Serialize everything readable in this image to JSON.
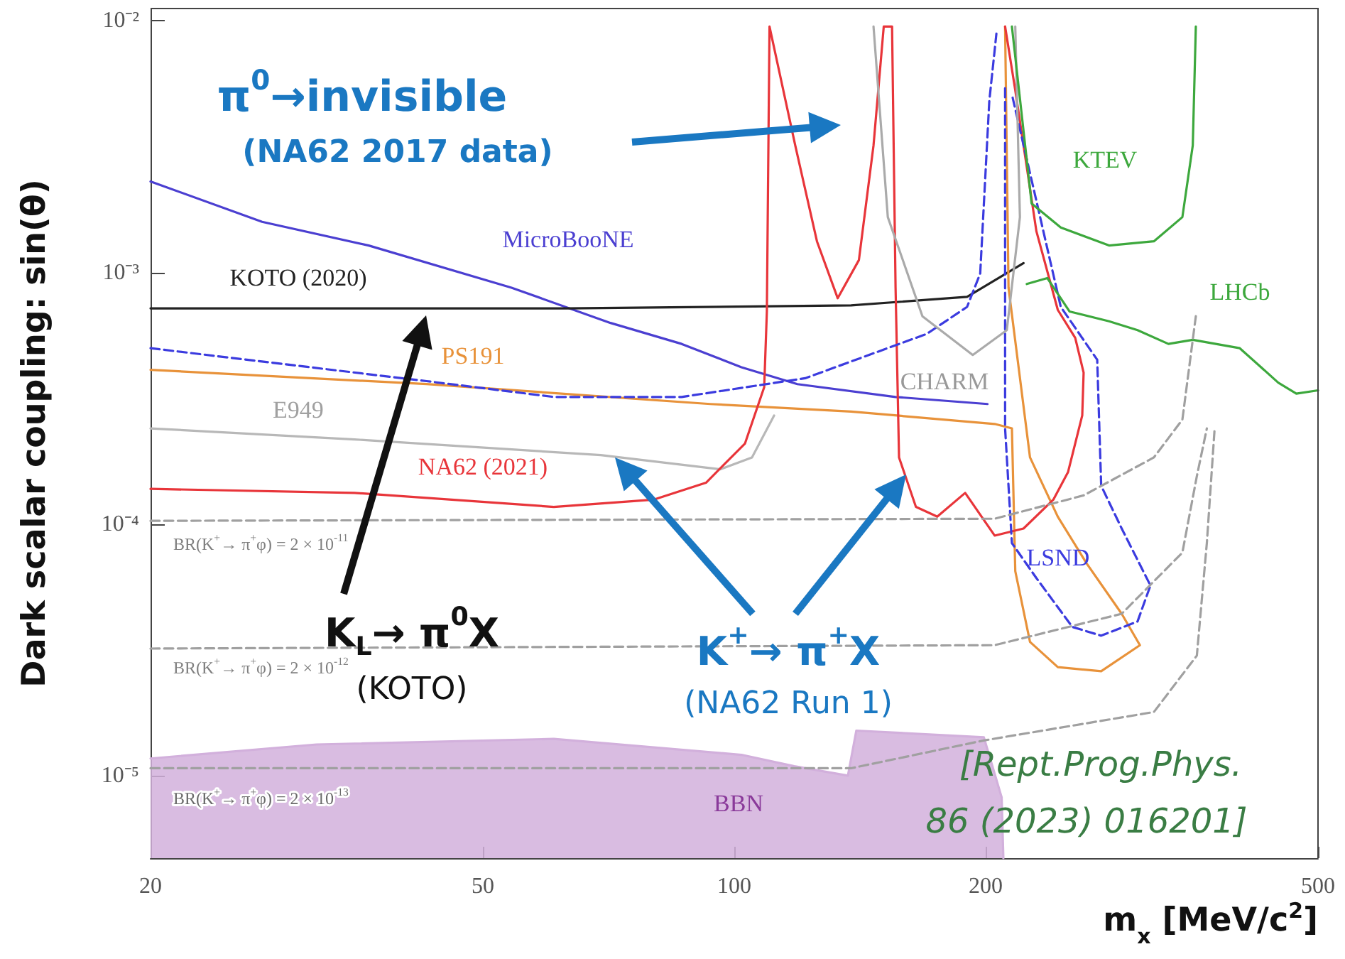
{
  "chart_data": {
    "type": "line",
    "xlabel": "m$_{x}$ [MeV/c$^{2}$]",
    "ylabel": "Dark scalar coupling: sin(θ)",
    "log": "xy",
    "xlim": [
      20,
      500
    ],
    "ylim": [
      4.7e-06,
      0.0112
    ],
    "xticks": [
      20,
      50,
      100,
      200,
      500
    ],
    "yticks": [
      {
        "value": 1e-05,
        "label": "10⁻⁵"
      },
      {
        "value": 0.0001,
        "label": "10⁻⁴"
      },
      {
        "value": 0.001,
        "label": "10⁻³"
      },
      {
        "value": 0.01,
        "label": "10⁻²"
      }
    ],
    "grid": false,
    "marker": "none",
    "line_style": "solid",
    "series": [
      {
        "color": "#4b3fd1",
        "x": [
          20,
          27.2,
          36.5,
          54.1,
          71.1,
          86.5,
          102,
          119,
          156,
          201
        ],
        "values": [
          0.0023,
          0.00159,
          0.00128,
          0.00087,
          0.00063,
          0.00052,
          0.00042,
          0.00036,
          0.00032,
          0.0003
        ]
      },
      {
        "color": "#222222",
        "x": [
          20,
          63,
          138,
          190,
          222
        ],
        "values": [
          0.00072,
          0.00072,
          0.00074,
          0.0008,
          0.00109
        ]
      },
      {
        "color": "#e8923a",
        "x": [
          20,
          42.8,
          93.6,
          138,
          205,
          215,
          217,
          226,
          244,
          275,
          306,
          291,
          264,
          244,
          226,
          213,
          211
        ],
        "values": [
          0.00041,
          0.00036,
          0.0003,
          0.00028,
          0.00025,
          0.00024,
          6.5e-05,
          3.4e-05,
          2.7e-05,
          2.6e-05,
          3.3e-05,
          4.4e-05,
          7e-05,
          0.000107,
          0.000184,
          0.00087,
          0.0095
        ]
      },
      {
        "color": "#b8b8b8",
        "x": [
          20,
          35.1,
          69.2,
          96.2,
          105,
          111.6
        ],
        "values": [
          0.00024,
          0.000217,
          0.000188,
          0.000165,
          0.000184,
          0.00027
        ]
      },
      {
        "color": "#e8353a",
        "x": [
          20,
          35.1,
          60.8,
          80,
          92.5,
          103,
          108.6,
          109.4,
          110.2,
          118.3,
          125.6,
          133,
          141,
          146.8,
          151,
          154.5,
          156,
          157.5,
          165,
          175,
          189,
          205,
          222,
          241,
          251,
          261,
          262,
          256,
          244,
          230,
          217,
          211
        ],
        "values": [
          0.000138,
          0.000133,
          0.000117,
          0.000125,
          0.000146,
          0.000209,
          0.00035,
          0.0007,
          0.0095,
          0.0032,
          0.00133,
          0.00079,
          0.00112,
          0.0032,
          0.0095,
          0.0095,
          0.00087,
          0.000184,
          0.000117,
          0.000107,
          0.000133,
          9e-05,
          9.6e-05,
          0.000125,
          0.000161,
          0.00027,
          0.0004,
          0.00055,
          0.00071,
          0.00146,
          0.0053,
          0.0095
        ]
      },
      {
        "color": "#3b3bdf",
        "line_style": "dashed",
        "x": [
          20,
          42.8,
          60.8,
          86.5,
          121.6,
          170,
          190,
          197,
          202,
          206
        ],
        "values": [
          0.0005,
          0.00037,
          0.00032,
          0.00032,
          0.00038,
          0.00057,
          0.00073,
          0.00099,
          0.0048,
          0.0089
        ]
      },
      {
        "color": "#3b3bdf",
        "line_style": "dashed",
        "x": [
          211,
          211,
          215,
          230,
          254,
          275,
          304,
          315,
          291,
          275,
          272,
          246,
          215
        ],
        "values": [
          0.0054,
          0.00024,
          8.4e-05,
          6.1e-05,
          3.9e-05,
          3.6e-05,
          4.1e-05,
          5.7e-05,
          9.6e-05,
          0.000142,
          0.00045,
          0.00073,
          0.0051
        ]
      },
      {
        "color": "#aaaaaa",
        "x": [
          146.8,
          152.7,
          168,
          193,
          212,
          219.8,
          217
        ],
        "values": [
          0.0095,
          0.00166,
          0.00067,
          0.00047,
          0.00059,
          0.00166,
          0.0095
        ]
      },
      {
        "color": "#3da83d",
        "x": [
          215,
          227,
          246,
          281,
          318,
          344,
          354,
          357
        ],
        "values": [
          0.0095,
          0.00188,
          0.00151,
          0.00128,
          0.00133,
          0.00166,
          0.0032,
          0.0095
        ]
      },
      {
        "color": "#3da83d",
        "x": [
          224,
          237,
          252,
          281,
          304,
          331,
          354,
          403,
          448,
          471,
          500
        ],
        "values": [
          0.0009,
          0.00095,
          0.0007,
          0.00064,
          0.00059,
          0.00052,
          0.00054,
          0.0005,
          0.000365,
          0.00033,
          0.00034
        ]
      },
      {
        "type": "area",
        "color": "#d2b0dc",
        "x": [
          20,
          31.6,
          60.8,
          102,
          118,
          136.8,
          140,
          199,
          209,
          210
        ],
        "values": [
          1.17e-05,
          1.33e-05,
          1.4e-05,
          1.21e-05,
          1.09e-05,
          1e-05,
          1.51e-05,
          1.42e-05,
          8.2e-06,
          4.7e-06
        ]
      },
      {
        "color": "#a0a0a0",
        "line_style": "dashed",
        "x": [
          20,
          205,
          262,
          318,
          344,
          357
        ],
        "values": [
          0.000103,
          0.000105,
          0.00013,
          0.000184,
          0.00026,
          0.00067
        ]
      },
      {
        "color": "#a0a0a0",
        "line_style": "dashed",
        "x": [
          20,
          205,
          291,
          344,
          358,
          368
        ],
        "values": [
          3.2e-05,
          3.3e-05,
          4.4e-05,
          7.7e-05,
          0.000155,
          0.00024
        ]
      },
      {
        "color": "#a0a0a0",
        "line_style": "dashed",
        "x": [
          20,
          138,
          199,
          318,
          358,
          368,
          376
        ],
        "values": [
          1.07e-05,
          1.07e-05,
          1.38e-05,
          1.79e-05,
          3e-05,
          8.4e-05,
          0.00024
        ]
      }
    ],
    "annotations": [
      "π$^{0}$→invisible",
      "(NA62 2017 data)",
      "MicroBooNE",
      "KOTO (2020)",
      "PS191",
      "E949",
      "NA62 (2021)",
      "CHARM",
      "KTEV",
      "LHCb",
      "LSND",
      "BBN",
      "BR(K$^{+}$→ π$^{+}$φ) = 2 × 10$^{-11}$",
      "BR(K$^{+}$→ π$^{+}$φ) = 2 × 10$^{-12}$",
      "BR(K$^{+}$→ π$^{+}$φ) = 2 × 10$^{-13}$",
      "K$_{L}$→ π$^{0}$X",
      "(KOTO)",
      "K$^{+}$→ π$^{+}$X",
      "(NA62 Run 1)",
      "[Rept.Prog.Phys.",
      "86 (2023) 016201]"
    ]
  }
}
